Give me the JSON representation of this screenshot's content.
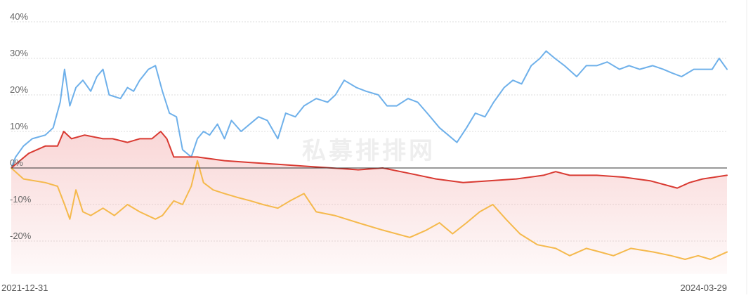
{
  "watermark": "私募排排网",
  "chart_data": {
    "type": "line",
    "x_start": "2021-12-31",
    "x_end": "2024-03-29",
    "xticks": [
      "2021-12-31",
      "2024-03-29"
    ],
    "yticks": [
      "40%",
      "30%",
      "20%",
      "10%",
      "0%",
      "-10%",
      "-20%"
    ],
    "ytick_values": [
      40,
      30,
      20,
      10,
      0,
      -10,
      -20
    ],
    "ylim": [
      -29,
      42
    ],
    "grid": true,
    "series": [
      {
        "color": "#6eb0ea",
        "fill": false,
        "points": [
          [
            "2021-12-31",
            0
          ],
          [
            "2022-01-05",
            3
          ],
          [
            "2022-01-14",
            6
          ],
          [
            "2022-01-24",
            8
          ],
          [
            "2022-02-08",
            9
          ],
          [
            "2022-02-17",
            11
          ],
          [
            "2022-02-25",
            18
          ],
          [
            "2022-03-02",
            27
          ],
          [
            "2022-03-08",
            17
          ],
          [
            "2022-03-15",
            22
          ],
          [
            "2022-03-23",
            24
          ],
          [
            "2022-04-01",
            21
          ],
          [
            "2022-04-08",
            25
          ],
          [
            "2022-04-15",
            27
          ],
          [
            "2022-04-22",
            20
          ],
          [
            "2022-05-05",
            19
          ],
          [
            "2022-05-13",
            22
          ],
          [
            "2022-05-20",
            21
          ],
          [
            "2022-05-27",
            24
          ],
          [
            "2022-06-06",
            27
          ],
          [
            "2022-06-14",
            28
          ],
          [
            "2022-06-22",
            21
          ],
          [
            "2022-06-30",
            15
          ],
          [
            "2022-07-08",
            14
          ],
          [
            "2022-07-15",
            5
          ],
          [
            "2022-07-25",
            3
          ],
          [
            "2022-08-01",
            8
          ],
          [
            "2022-08-08",
            10
          ],
          [
            "2022-08-15",
            9
          ],
          [
            "2022-08-24",
            12
          ],
          [
            "2022-09-01",
            8
          ],
          [
            "2022-09-09",
            13
          ],
          [
            "2022-09-20",
            10
          ],
          [
            "2022-10-10",
            14
          ],
          [
            "2022-10-20",
            13
          ],
          [
            "2022-11-01",
            8
          ],
          [
            "2022-11-10",
            15
          ],
          [
            "2022-11-21",
            14
          ],
          [
            "2022-12-01",
            17
          ],
          [
            "2022-12-15",
            19
          ],
          [
            "2022-12-28",
            18
          ],
          [
            "2023-01-06",
            20
          ],
          [
            "2023-01-16",
            24
          ],
          [
            "2023-01-30",
            22
          ],
          [
            "2023-02-10",
            21
          ],
          [
            "2023-02-24",
            20
          ],
          [
            "2023-03-06",
            17
          ],
          [
            "2023-03-17",
            17
          ],
          [
            "2023-03-30",
            19
          ],
          [
            "2023-04-10",
            18
          ],
          [
            "2023-04-21",
            15
          ],
          [
            "2023-05-05",
            11
          ],
          [
            "2023-05-15",
            9
          ],
          [
            "2023-05-25",
            7
          ],
          [
            "2023-06-05",
            11
          ],
          [
            "2023-06-15",
            15
          ],
          [
            "2023-06-26",
            14
          ],
          [
            "2023-07-06",
            18
          ],
          [
            "2023-07-18",
            22
          ],
          [
            "2023-07-28",
            24
          ],
          [
            "2023-08-07",
            23
          ],
          [
            "2023-08-18",
            28
          ],
          [
            "2023-08-28",
            30
          ],
          [
            "2023-09-04",
            32
          ],
          [
            "2023-09-14",
            30
          ],
          [
            "2023-09-25",
            28
          ],
          [
            "2023-10-09",
            25
          ],
          [
            "2023-10-20",
            28
          ],
          [
            "2023-11-01",
            28
          ],
          [
            "2023-11-13",
            29
          ],
          [
            "2023-11-27",
            27
          ],
          [
            "2023-12-08",
            28
          ],
          [
            "2023-12-20",
            27
          ],
          [
            "2024-01-04",
            28
          ],
          [
            "2024-01-16",
            27
          ],
          [
            "2024-01-26",
            26
          ],
          [
            "2024-02-06",
            25
          ],
          [
            "2024-02-20",
            27
          ],
          [
            "2024-03-01",
            27
          ],
          [
            "2024-03-12",
            27
          ],
          [
            "2024-03-20",
            30
          ],
          [
            "2024-03-29",
            27
          ]
        ]
      },
      {
        "color": "#d93a32",
        "fill": true,
        "fill_color": "#f4b6b6",
        "points": [
          [
            "2021-12-31",
            0
          ],
          [
            "2022-01-20",
            4
          ],
          [
            "2022-02-08",
            6
          ],
          [
            "2022-02-22",
            6
          ],
          [
            "2022-03-01",
            10
          ],
          [
            "2022-03-10",
            8
          ],
          [
            "2022-03-25",
            9
          ],
          [
            "2022-04-15",
            8
          ],
          [
            "2022-04-26",
            8
          ],
          [
            "2022-05-13",
            7
          ],
          [
            "2022-05-27",
            8
          ],
          [
            "2022-06-10",
            8
          ],
          [
            "2022-06-20",
            10
          ],
          [
            "2022-06-27",
            8
          ],
          [
            "2022-07-05",
            3
          ],
          [
            "2022-07-20",
            3
          ],
          [
            "2022-08-01",
            3
          ],
          [
            "2022-09-01",
            2
          ],
          [
            "2022-10-01",
            1.5
          ],
          [
            "2022-11-01",
            1
          ],
          [
            "2022-12-01",
            0.5
          ],
          [
            "2023-01-02",
            0
          ],
          [
            "2023-02-01",
            -0.5
          ],
          [
            "2023-03-01",
            0
          ],
          [
            "2023-04-01",
            -1.5
          ],
          [
            "2023-05-01",
            -3
          ],
          [
            "2023-06-01",
            -4
          ],
          [
            "2023-07-01",
            -3.5
          ],
          [
            "2023-08-01",
            -3
          ],
          [
            "2023-09-01",
            -2
          ],
          [
            "2023-09-15",
            -1
          ],
          [
            "2023-10-01",
            -2
          ],
          [
            "2023-11-01",
            -2
          ],
          [
            "2023-12-01",
            -2.5
          ],
          [
            "2024-01-01",
            -3.5
          ],
          [
            "2024-02-01",
            -5.5
          ],
          [
            "2024-02-15",
            -4
          ],
          [
            "2024-03-01",
            -3
          ],
          [
            "2024-03-29",
            -2
          ]
        ]
      },
      {
        "color": "#f5b94c",
        "fill": false,
        "points": [
          [
            "2021-12-31",
            0
          ],
          [
            "2022-01-14",
            -3
          ],
          [
            "2022-02-08",
            -4
          ],
          [
            "2022-02-22",
            -5
          ],
          [
            "2022-03-02",
            -10
          ],
          [
            "2022-03-08",
            -14
          ],
          [
            "2022-03-15",
            -6
          ],
          [
            "2022-03-23",
            -12
          ],
          [
            "2022-04-01",
            -13
          ],
          [
            "2022-04-15",
            -11
          ],
          [
            "2022-04-28",
            -13
          ],
          [
            "2022-05-13",
            -10
          ],
          [
            "2022-05-27",
            -12
          ],
          [
            "2022-06-14",
            -14
          ],
          [
            "2022-06-22",
            -13
          ],
          [
            "2022-07-05",
            -9
          ],
          [
            "2022-07-15",
            -10
          ],
          [
            "2022-07-25",
            -5
          ],
          [
            "2022-08-01",
            2
          ],
          [
            "2022-08-08",
            -4
          ],
          [
            "2022-08-19",
            -6
          ],
          [
            "2022-09-01",
            -7
          ],
          [
            "2022-09-15",
            -8
          ],
          [
            "2022-10-01",
            -9
          ],
          [
            "2022-10-15",
            -10
          ],
          [
            "2022-11-01",
            -11
          ],
          [
            "2022-11-15",
            -9
          ],
          [
            "2022-12-01",
            -7
          ],
          [
            "2022-12-15",
            -12
          ],
          [
            "2023-01-05",
            -13
          ],
          [
            "2023-02-01",
            -15
          ],
          [
            "2023-03-01",
            -17
          ],
          [
            "2023-04-01",
            -19
          ],
          [
            "2023-04-20",
            -17
          ],
          [
            "2023-05-05",
            -15
          ],
          [
            "2023-05-20",
            -18
          ],
          [
            "2023-06-05",
            -15
          ],
          [
            "2023-06-20",
            -12
          ],
          [
            "2023-07-05",
            -10
          ],
          [
            "2023-07-20",
            -14
          ],
          [
            "2023-08-05",
            -18
          ],
          [
            "2023-08-25",
            -21
          ],
          [
            "2023-09-15",
            -22
          ],
          [
            "2023-10-01",
            -24
          ],
          [
            "2023-10-20",
            -22
          ],
          [
            "2023-11-05",
            -23
          ],
          [
            "2023-11-20",
            -24
          ],
          [
            "2023-12-10",
            -22
          ],
          [
            "2024-01-05",
            -23
          ],
          [
            "2024-01-25",
            -24
          ],
          [
            "2024-02-10",
            -25
          ],
          [
            "2024-02-25",
            -24
          ],
          [
            "2024-03-10",
            -25
          ],
          [
            "2024-03-29",
            -23
          ]
        ]
      }
    ]
  }
}
